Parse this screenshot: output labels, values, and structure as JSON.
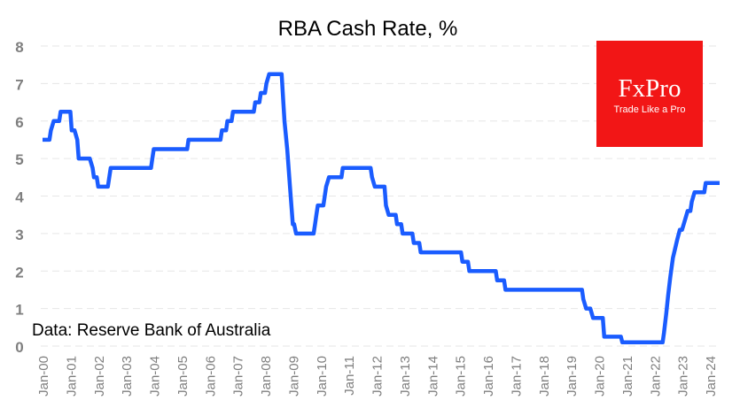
{
  "chart_data": {
    "type": "line",
    "title": "RBA Cash Rate, %",
    "annotation": "Data: Reserve Bank of Australia",
    "xlabel": "",
    "ylabel": "",
    "ylim": [
      0,
      8
    ],
    "xlim": [
      2000,
      2024.35
    ],
    "yticks": [
      0,
      1,
      2,
      3,
      4,
      5,
      6,
      7,
      8
    ],
    "xtick_labels": [
      "Jan-00",
      "Jan-01",
      "Jan-02",
      "Jan-03",
      "Jan-04",
      "Jan-05",
      "Jan-06",
      "Jan-07",
      "Jan-08",
      "Jan-09",
      "Jan-10",
      "Jan-11",
      "Jan-12",
      "Jan-13",
      "Jan-14",
      "Jan-15",
      "Jan-16",
      "Jan-17",
      "Jan-18",
      "Jan-19",
      "Jan-20",
      "Jan-21",
      "Jan-22",
      "Jan-23",
      "Jan-24"
    ],
    "grid": true,
    "color": "#1a5cff",
    "series": [
      {
        "name": "RBA Cash Rate",
        "points": [
          [
            2000.0,
            5.5
          ],
          [
            2000.25,
            5.5
          ],
          [
            2000.3,
            5.75
          ],
          [
            2000.4,
            6.0
          ],
          [
            2000.6,
            6.0
          ],
          [
            2000.65,
            6.25
          ],
          [
            2001.0,
            6.25
          ],
          [
            2001.05,
            5.75
          ],
          [
            2001.15,
            5.75
          ],
          [
            2001.25,
            5.5
          ],
          [
            2001.3,
            5.0
          ],
          [
            2001.7,
            5.0
          ],
          [
            2001.8,
            4.75
          ],
          [
            2001.85,
            4.5
          ],
          [
            2001.95,
            4.5
          ],
          [
            2002.0,
            4.25
          ],
          [
            2002.35,
            4.25
          ],
          [
            2002.4,
            4.5
          ],
          [
            2002.45,
            4.75
          ],
          [
            2003.9,
            4.75
          ],
          [
            2003.95,
            5.0
          ],
          [
            2004.0,
            5.25
          ],
          [
            2005.2,
            5.25
          ],
          [
            2005.25,
            5.5
          ],
          [
            2006.4,
            5.5
          ],
          [
            2006.45,
            5.75
          ],
          [
            2006.6,
            5.75
          ],
          [
            2006.65,
            6.0
          ],
          [
            2006.8,
            6.0
          ],
          [
            2006.85,
            6.25
          ],
          [
            2007.6,
            6.25
          ],
          [
            2007.65,
            6.5
          ],
          [
            2007.8,
            6.5
          ],
          [
            2007.85,
            6.75
          ],
          [
            2008.0,
            6.75
          ],
          [
            2008.05,
            7.0
          ],
          [
            2008.15,
            7.25
          ],
          [
            2008.6,
            7.25
          ],
          [
            2008.7,
            6.0
          ],
          [
            2008.8,
            5.25
          ],
          [
            2008.9,
            4.25
          ],
          [
            2009.0,
            3.25
          ],
          [
            2009.05,
            3.25
          ],
          [
            2009.12,
            3.0
          ],
          [
            2009.75,
            3.0
          ],
          [
            2009.8,
            3.25
          ],
          [
            2009.85,
            3.5
          ],
          [
            2009.9,
            3.75
          ],
          [
            2010.1,
            3.75
          ],
          [
            2010.2,
            4.25
          ],
          [
            2010.3,
            4.5
          ],
          [
            2010.75,
            4.5
          ],
          [
            2010.8,
            4.75
          ],
          [
            2011.8,
            4.75
          ],
          [
            2011.85,
            4.5
          ],
          [
            2011.95,
            4.25
          ],
          [
            2012.3,
            4.25
          ],
          [
            2012.35,
            3.75
          ],
          [
            2012.45,
            3.5
          ],
          [
            2012.7,
            3.5
          ],
          [
            2012.75,
            3.25
          ],
          [
            2012.9,
            3.25
          ],
          [
            2012.95,
            3.0
          ],
          [
            2013.3,
            3.0
          ],
          [
            2013.35,
            2.75
          ],
          [
            2013.55,
            2.75
          ],
          [
            2013.6,
            2.5
          ],
          [
            2015.05,
            2.5
          ],
          [
            2015.1,
            2.25
          ],
          [
            2015.3,
            2.25
          ],
          [
            2015.35,
            2.0
          ],
          [
            2016.3,
            2.0
          ],
          [
            2016.35,
            1.75
          ],
          [
            2016.6,
            1.75
          ],
          [
            2016.65,
            1.5
          ],
          [
            2019.4,
            1.5
          ],
          [
            2019.45,
            1.25
          ],
          [
            2019.55,
            1.0
          ],
          [
            2019.7,
            1.0
          ],
          [
            2019.8,
            0.75
          ],
          [
            2020.15,
            0.75
          ],
          [
            2020.2,
            0.25
          ],
          [
            2020.8,
            0.25
          ],
          [
            2020.85,
            0.1
          ],
          [
            2022.3,
            0.1
          ],
          [
            2022.35,
            0.35
          ],
          [
            2022.43,
            0.85
          ],
          [
            2022.5,
            1.35
          ],
          [
            2022.58,
            1.85
          ],
          [
            2022.67,
            2.35
          ],
          [
            2022.75,
            2.6
          ],
          [
            2022.83,
            2.85
          ],
          [
            2022.92,
            3.1
          ],
          [
            2023.0,
            3.1
          ],
          [
            2023.1,
            3.35
          ],
          [
            2023.2,
            3.6
          ],
          [
            2023.3,
            3.6
          ],
          [
            2023.35,
            3.85
          ],
          [
            2023.45,
            4.1
          ],
          [
            2023.8,
            4.1
          ],
          [
            2023.85,
            4.35
          ],
          [
            2024.35,
            4.35
          ]
        ]
      }
    ]
  },
  "logo": {
    "brand": "FxPro",
    "tagline": "Trade Like a Pro"
  }
}
